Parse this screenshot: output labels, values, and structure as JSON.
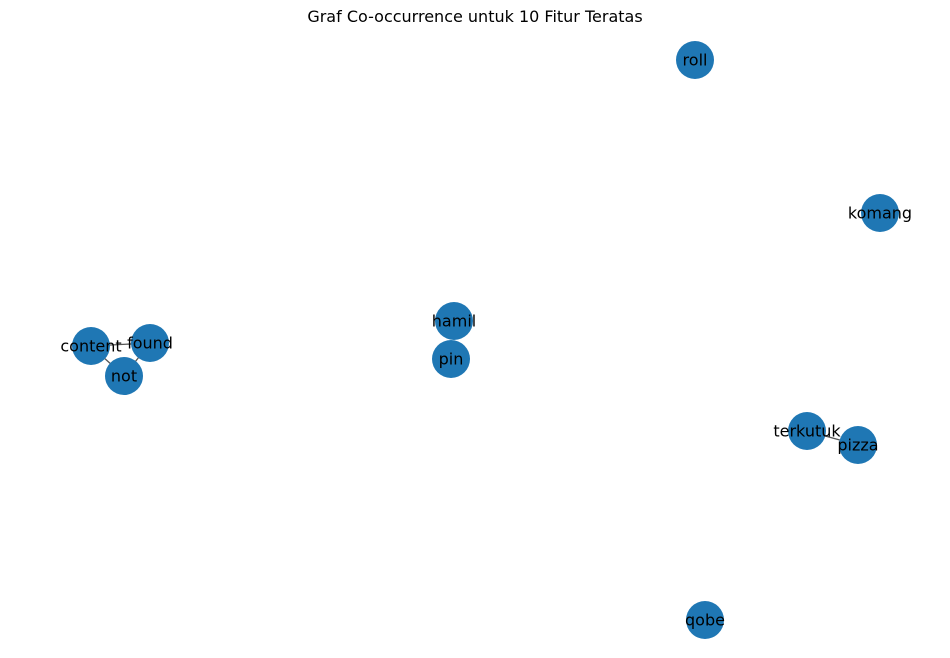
{
  "title": "Graf Co-occurrence untuk 10 Fitur Teratas",
  "colors": {
    "node": "#1f77b4",
    "edge": "#555555",
    "label": "#000000"
  },
  "nodes": [
    {
      "id": "content",
      "label": "content"
    },
    {
      "id": "found",
      "label": "found"
    },
    {
      "id": "not",
      "label": "not"
    },
    {
      "id": "hamil",
      "label": "hamil"
    },
    {
      "id": "pin",
      "label": "pin"
    },
    {
      "id": "roll",
      "label": "roll"
    },
    {
      "id": "komang",
      "label": "komang"
    },
    {
      "id": "terkutuk",
      "label": "terkutuk"
    },
    {
      "id": "pizza",
      "label": "pizza"
    },
    {
      "id": "qobe",
      "label": "qobe"
    }
  ],
  "edges": [
    {
      "source": "content",
      "target": "found"
    },
    {
      "source": "content",
      "target": "not"
    },
    {
      "source": "found",
      "target": "not"
    },
    {
      "source": "terkutuk",
      "target": "pizza"
    }
  ]
}
